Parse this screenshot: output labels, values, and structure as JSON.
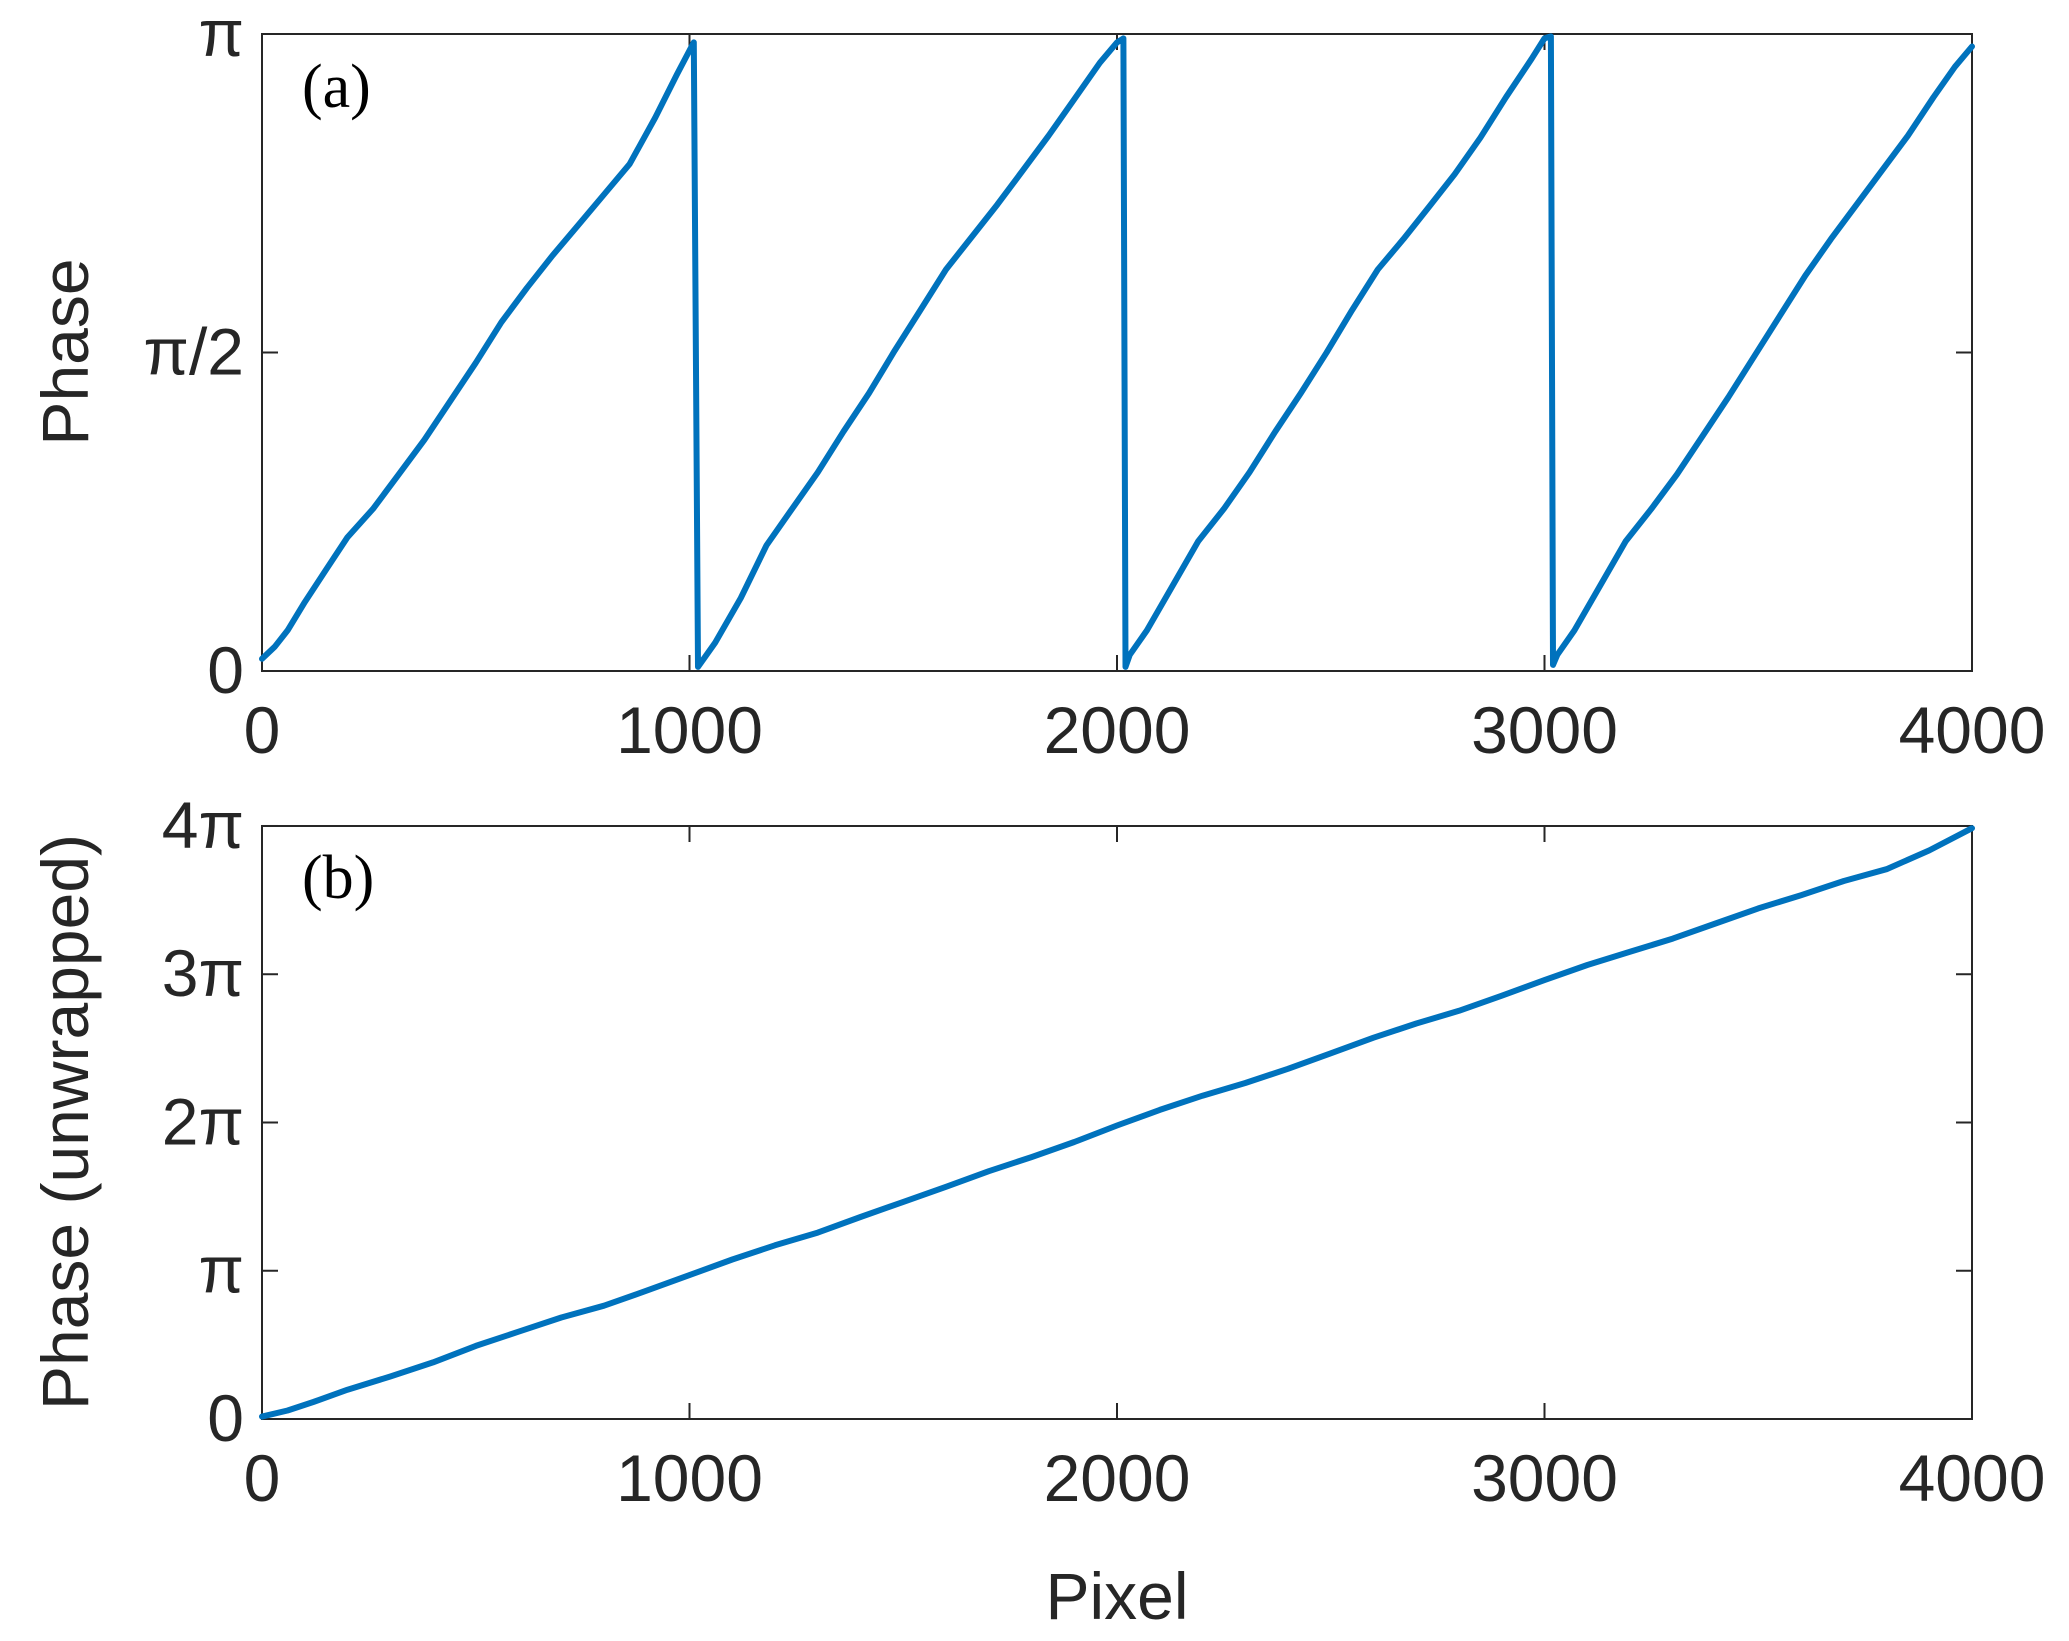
{
  "chart_data": [
    {
      "type": "line",
      "panel_label": "(a)",
      "ylabel": "Phase",
      "xlabel": "",
      "xlim": [
        0,
        4000
      ],
      "ylim": [
        0,
        3.14159
      ],
      "xticks": [
        0,
        1000,
        2000,
        3000,
        4000
      ],
      "xtick_labels": [
        "0",
        "1000",
        "2000",
        "3000",
        "4000"
      ],
      "yticks": [
        0,
        1.5708,
        3.14159
      ],
      "ytick_labels": [
        "0",
        "π/2",
        "π"
      ],
      "grid": false,
      "line_color": "#0072BD",
      "series": [
        {
          "x": [
            0,
            30,
            60,
            100,
            150,
            200,
            260,
            320,
            380,
            440,
            500,
            560,
            620,
            680,
            740,
            800,
            860,
            920,
            970,
            1005,
            1010,
            1020,
            1060,
            1120,
            1180,
            1240,
            1300,
            1360,
            1420,
            1480,
            1540,
            1600,
            1660,
            1720,
            1780,
            1840,
            1900,
            1960,
            2000,
            2015,
            2020,
            2030,
            2070,
            2130,
            2190,
            2250,
            2310,
            2370,
            2430,
            2490,
            2550,
            2610,
            2670,
            2730,
            2790,
            2850,
            2910,
            2970,
            3000,
            3015,
            3020,
            3030,
            3070,
            3130,
            3190,
            3250,
            3310,
            3370,
            3430,
            3490,
            3550,
            3610,
            3670,
            3730,
            3790,
            3850,
            3910,
            3960,
            4000
          ],
          "y": [
            0.06,
            0.12,
            0.2,
            0.34,
            0.5,
            0.66,
            0.8,
            0.97,
            1.14,
            1.33,
            1.52,
            1.72,
            1.89,
            2.05,
            2.2,
            2.35,
            2.5,
            2.73,
            2.94,
            3.08,
            3.1,
            0.02,
            0.14,
            0.36,
            0.62,
            0.8,
            0.98,
            1.18,
            1.37,
            1.58,
            1.78,
            1.98,
            2.14,
            2.3,
            2.47,
            2.64,
            2.82,
            3.0,
            3.1,
            3.12,
            0.02,
            0.08,
            0.2,
            0.42,
            0.64,
            0.8,
            0.98,
            1.18,
            1.37,
            1.57,
            1.78,
            1.98,
            2.13,
            2.29,
            2.45,
            2.63,
            2.83,
            3.02,
            3.12,
            3.13,
            0.03,
            0.08,
            0.2,
            0.42,
            0.64,
            0.8,
            0.97,
            1.16,
            1.35,
            1.55,
            1.75,
            1.95,
            2.13,
            2.3,
            2.47,
            2.64,
            2.83,
            2.98,
            3.08
          ]
        }
      ]
    },
    {
      "type": "line",
      "panel_label": "(b)",
      "ylabel": "Phase (unwrapped)",
      "xlabel": "Pixel",
      "xlim": [
        0,
        4000
      ],
      "ylim": [
        0,
        12.566
      ],
      "xticks": [
        0,
        1000,
        2000,
        3000,
        4000
      ],
      "xtick_labels": [
        "0",
        "1000",
        "2000",
        "3000",
        "4000"
      ],
      "yticks": [
        0,
        3.14159,
        6.28319,
        9.42478,
        12.5664
      ],
      "ytick_labels": [
        "0",
        "π",
        "2π",
        "3π",
        "4π"
      ],
      "grid": false,
      "line_color": "#0072BD",
      "series": [
        {
          "x": [
            0,
            60,
            120,
            200,
            300,
            400,
            500,
            600,
            700,
            800,
            900,
            1000,
            1100,
            1200,
            1300,
            1400,
            1500,
            1600,
            1700,
            1800,
            1900,
            2000,
            2100,
            2200,
            2300,
            2400,
            2500,
            2600,
            2700,
            2800,
            2900,
            3000,
            3100,
            3200,
            3300,
            3400,
            3500,
            3600,
            3700,
            3800,
            3900,
            4000
          ],
          "y": [
            0.05,
            0.18,
            0.36,
            0.62,
            0.9,
            1.2,
            1.55,
            1.85,
            2.15,
            2.4,
            2.72,
            3.05,
            3.38,
            3.68,
            3.95,
            4.28,
            4.6,
            4.92,
            5.25,
            5.55,
            5.87,
            6.22,
            6.55,
            6.85,
            7.12,
            7.42,
            7.75,
            8.08,
            8.38,
            8.65,
            8.97,
            9.3,
            9.62,
            9.9,
            10.18,
            10.5,
            10.82,
            11.1,
            11.4,
            11.65,
            12.05,
            12.52
          ]
        }
      ]
    }
  ]
}
